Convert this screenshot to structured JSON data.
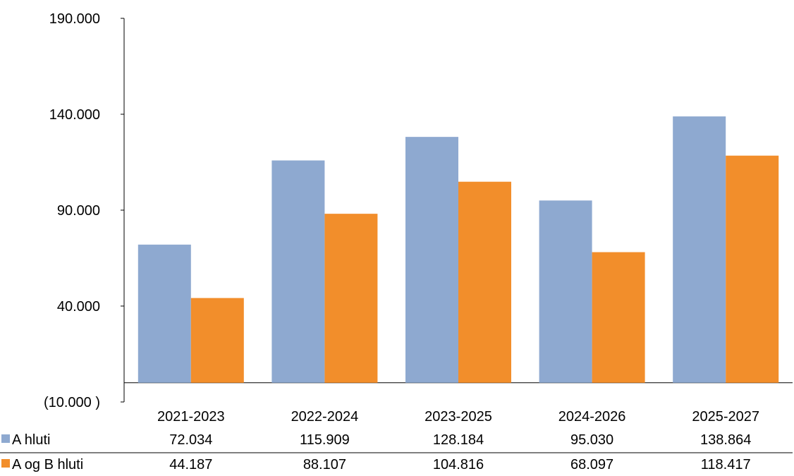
{
  "chart_data": {
    "type": "bar",
    "title": "",
    "xlabel": "",
    "ylabel": "",
    "categories": [
      "2021-2023",
      "2022-2024",
      "2023-2025",
      "2024-2026",
      "2025-2027"
    ],
    "series": [
      {
        "name": "A hluti",
        "color": "#8EA9D0",
        "values": [
          72034,
          115909,
          128184,
          95030,
          138864
        ],
        "value_labels": [
          "72.034",
          "115.909",
          "128.184",
          "95.030",
          "138.864"
        ]
      },
      {
        "name": "A og B hluti",
        "color": "#F28E2B",
        "values": [
          44187,
          88107,
          104816,
          68097,
          118417
        ],
        "value_labels": [
          "44.187",
          "88.107",
          "104.816",
          "68.097",
          "118.417"
        ]
      }
    ],
    "ylim": [
      -10000,
      190000
    ],
    "yticks": [
      190000,
      140000,
      90000,
      40000,
      -10000
    ],
    "ytick_labels": [
      "190.000",
      "140.000",
      "90.000",
      "40.000",
      "(10.000 )"
    ],
    "grid": false,
    "legend": "data-table-below"
  }
}
